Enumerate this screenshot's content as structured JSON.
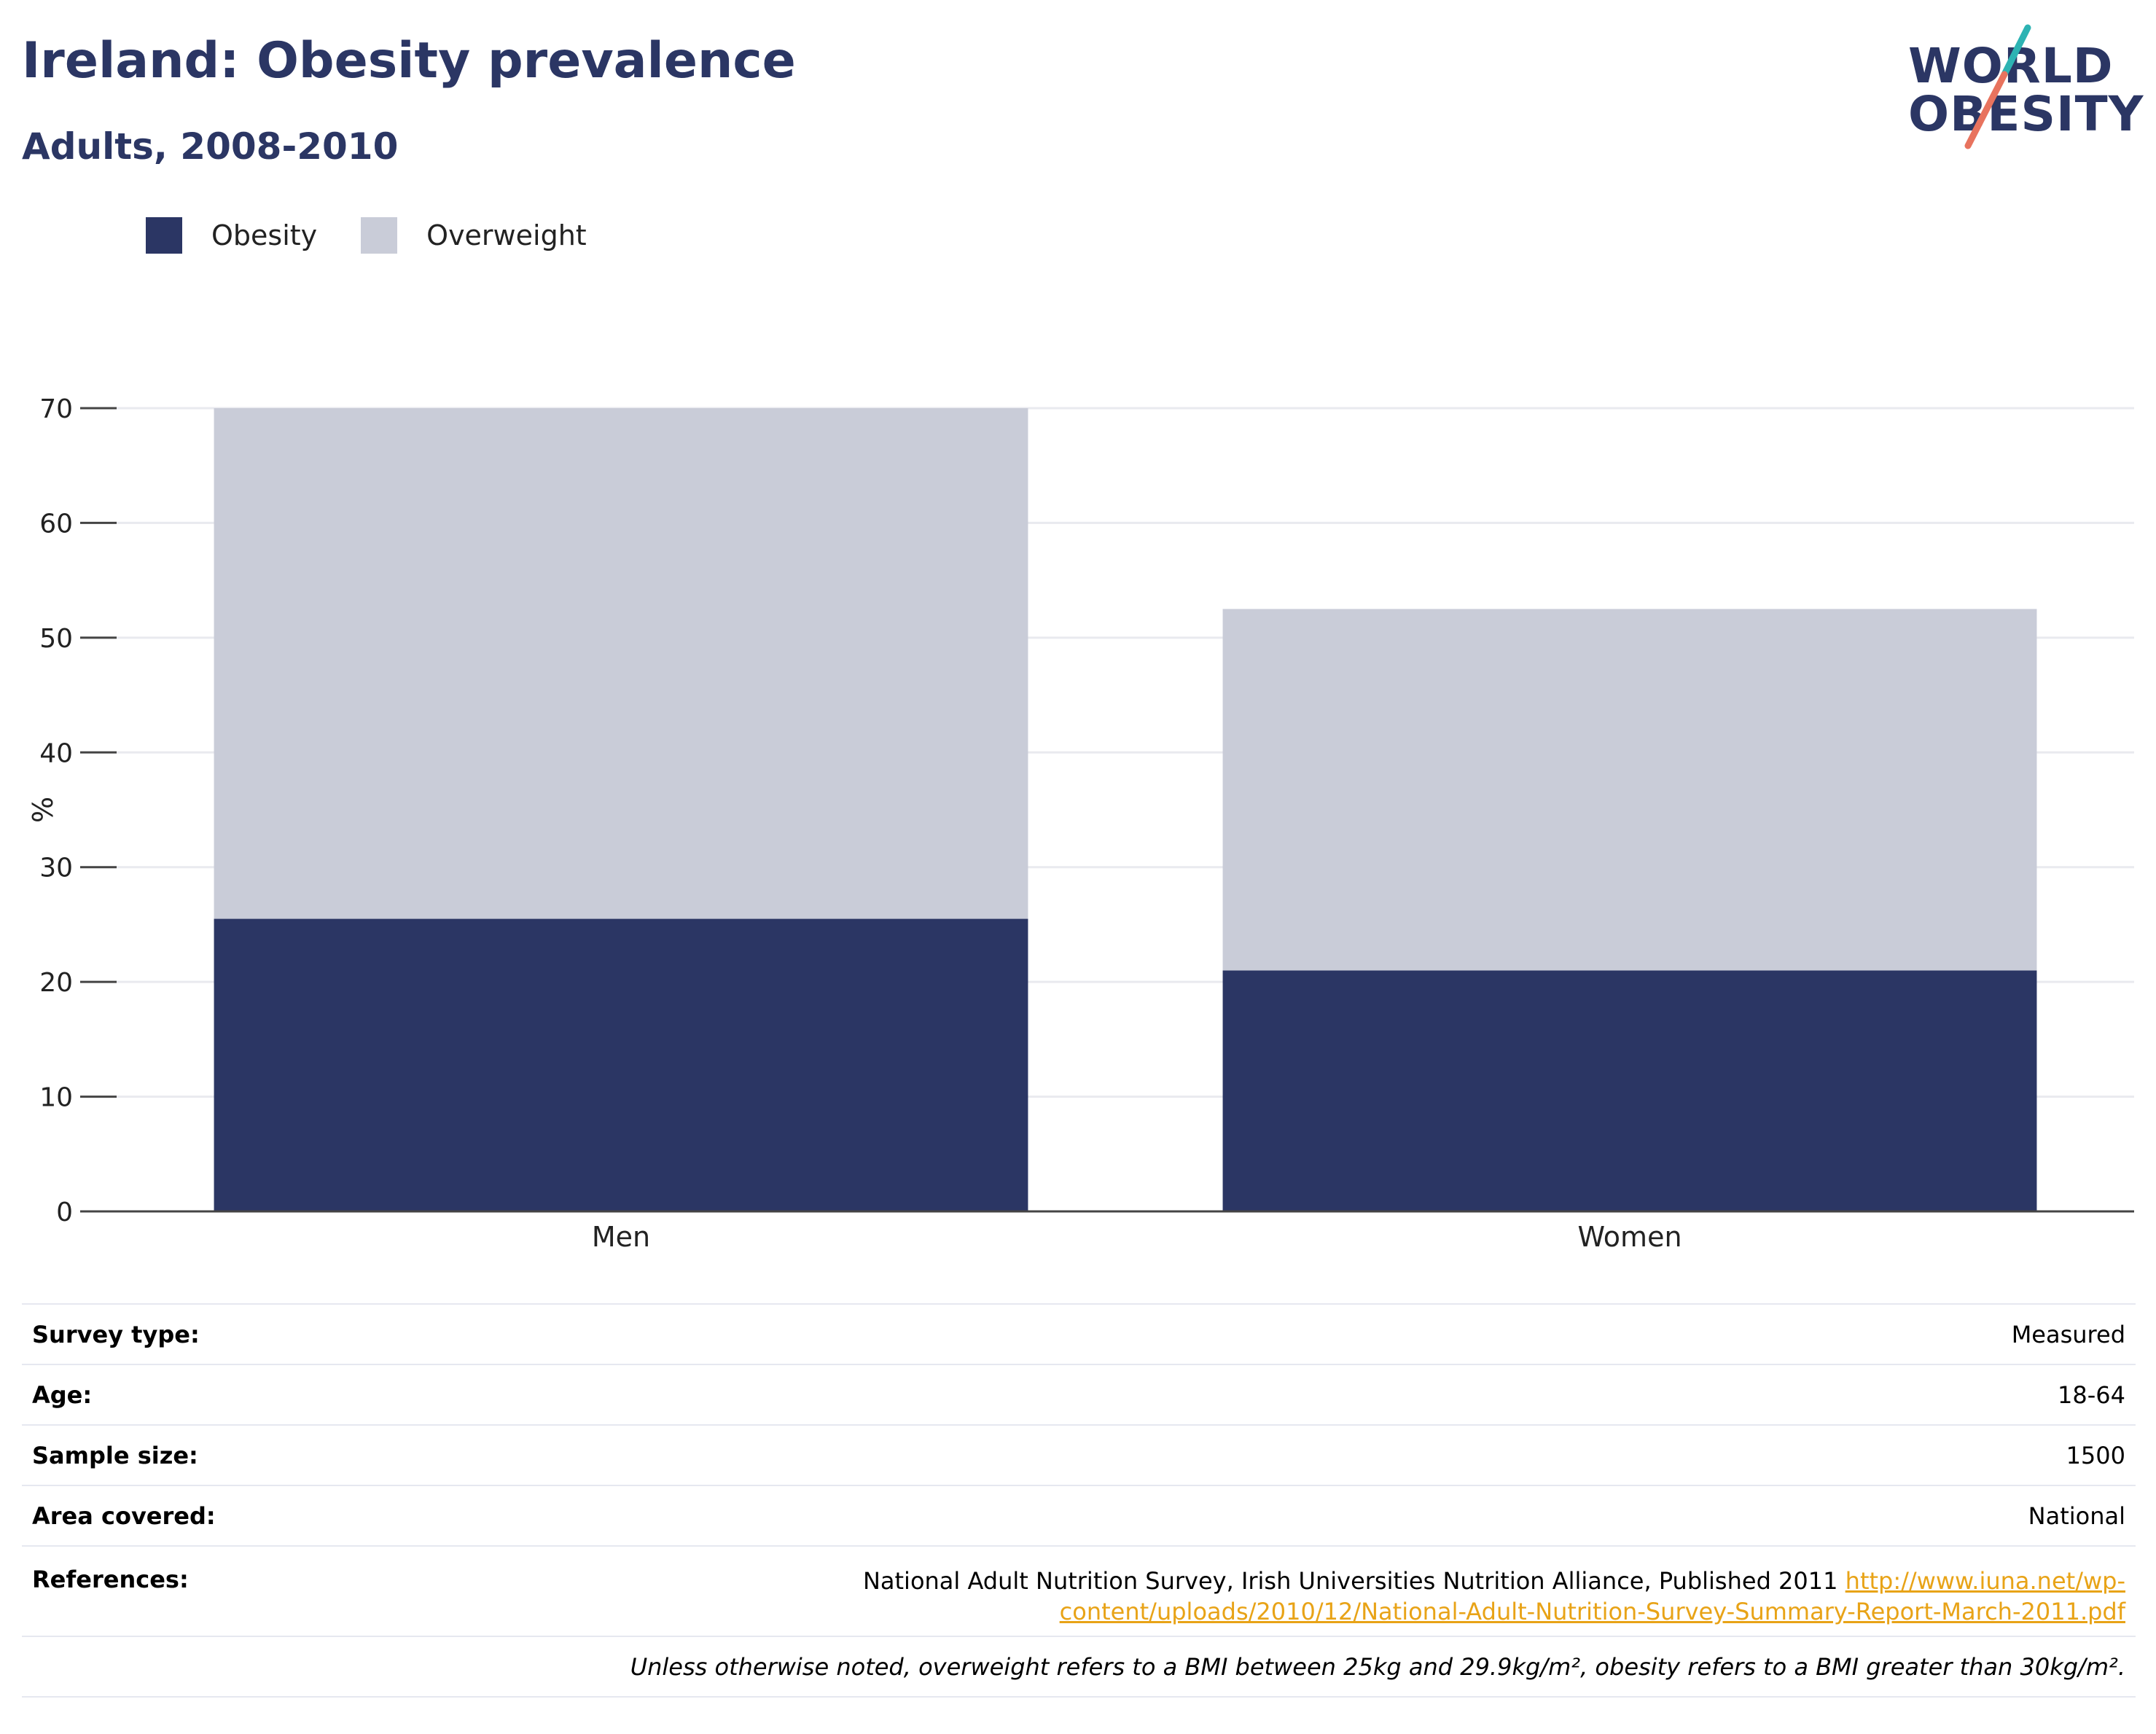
{
  "header": {
    "title": "Ireland: Obesity prevalence",
    "subtitle": "Adults, 2008-2010",
    "logo_line1": "WORLD",
    "logo_line2": "OBESITY"
  },
  "legend": [
    {
      "label": "Obesity",
      "color": "#2b3664"
    },
    {
      "label": "Overweight",
      "color": "#c9ccd8"
    }
  ],
  "chart_data": {
    "type": "bar",
    "stacked": true,
    "categories": [
      "Men",
      "Women"
    ],
    "series": [
      {
        "name": "Obesity",
        "values": [
          25.5,
          21.0
        ],
        "color": "#2b3664"
      },
      {
        "name": "Overweight",
        "values": [
          44.5,
          31.5
        ],
        "color": "#c9ccd8"
      }
    ],
    "ylabel": "%",
    "ylim": [
      0,
      70
    ],
    "yticks": [
      0,
      10,
      20,
      30,
      40,
      50,
      60,
      70
    ],
    "grid": true,
    "legend_position": "top-left"
  },
  "info": {
    "survey_type_label": "Survey type:",
    "survey_type": "Measured",
    "age_label": "Age:",
    "age": "18-64",
    "sample_size_label": "Sample size:",
    "sample_size": "1500",
    "area_label": "Area covered:",
    "area": "National",
    "references_label": "References:",
    "references_text": "National Adult Nutrition Survey, Irish Universities Nutrition Alliance, Published 2011",
    "references_link_1": "http://www.iuna.net/wp-",
    "references_link_2": "content/uploads/2010/12/National-Adult-Nutrition-Survey-Summary-Report-March-2011.pdf",
    "note": "Unless otherwise noted, overweight refers to a BMI between 25kg and 29.9kg/m², obesity refers to a BMI greater than 30kg/m²."
  }
}
